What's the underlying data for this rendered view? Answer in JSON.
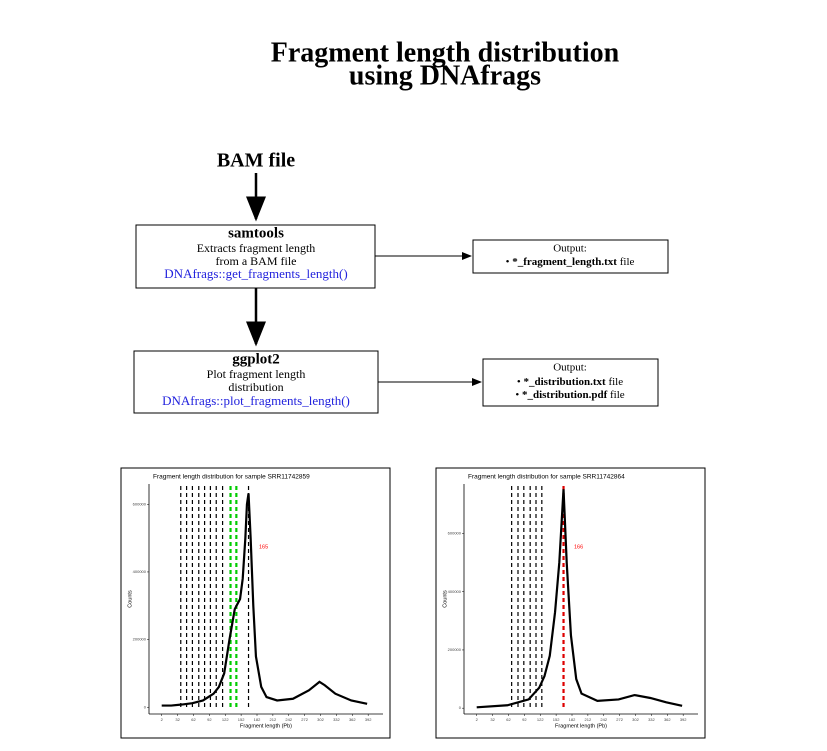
{
  "title": [
    "Fragment length distribution",
    "using DNAfrags"
  ],
  "input": "BAM file",
  "steps": [
    {
      "tool": "samtools",
      "lines": [
        "Extracts fragment length",
        "from a BAM file"
      ],
      "function": "DNAfrags::get_fragments_length()",
      "output": {
        "heading": "Output:",
        "files": [
          {
            "name": "*_fragment_length.txt",
            "suffix": "file"
          }
        ]
      }
    },
    {
      "tool": "ggplot2",
      "lines": [
        "Plot fragment length",
        "distribution"
      ],
      "function": "DNAfrags::plot_fragments_length()",
      "output": {
        "heading": "Output:",
        "files": [
          {
            "name": "*_distribution.txt",
            "suffix": "file"
          },
          {
            "name": "*_distribution.pdf",
            "suffix": "file"
          }
        ]
      }
    }
  ],
  "chart_data": [
    {
      "type": "line",
      "title": "Fragment length distribution for sample SRR11742859",
      "xlabel": "Fragment length (Pb)",
      "ylabel": "Counts",
      "x": [
        2,
        20,
        40,
        60,
        80,
        100,
        110,
        120,
        130,
        140,
        150,
        155,
        160,
        163,
        166,
        170,
        175,
        180,
        190,
        200,
        220,
        250,
        280,
        300,
        310,
        330,
        360,
        390
      ],
      "values": [
        5000,
        5000,
        8000,
        12000,
        20000,
        40000,
        60000,
        100000,
        200000,
        290000,
        320000,
        380000,
        500000,
        600000,
        632000,
        500000,
        300000,
        150000,
        60000,
        30000,
        20000,
        25000,
        50000,
        75000,
        65000,
        40000,
        20000,
        10000
      ],
      "color": "#000000",
      "vlines": [
        {
          "x": 38,
          "color": "#000000"
        },
        {
          "x": 49,
          "color": "#000000"
        },
        {
          "x": 60,
          "color": "#000000"
        },
        {
          "x": 72,
          "color": "#000000"
        },
        {
          "x": 83,
          "color": "#000000"
        },
        {
          "x": 94,
          "color": "#000000"
        },
        {
          "x": 105,
          "color": "#000000"
        },
        {
          "x": 117,
          "color": "#000000"
        },
        {
          "x": 132,
          "color": "#00cc00"
        },
        {
          "x": 143,
          "color": "#00cc00"
        },
        {
          "x": 166,
          "color": "#000000"
        }
      ],
      "annotation": "165",
      "annotation_color": "#ff0000",
      "xlim": [
        -22,
        420
      ],
      "ylim": [
        -20000,
        660000
      ],
      "xticks": [
        2,
        32,
        62,
        92,
        122,
        152,
        182,
        212,
        242,
        272,
        302,
        332,
        362,
        392
      ],
      "yticks": [
        0,
        200000,
        400000,
        600000
      ]
    },
    {
      "type": "line",
      "title": "Fragment length distribution for sample SRR11742864",
      "xlabel": "Fragment length (Pb)",
      "ylabel": "Counts",
      "x": [
        2,
        60,
        100,
        120,
        130,
        140,
        150,
        158,
        166,
        172,
        180,
        190,
        200,
        230,
        270,
        300,
        330,
        360,
        390
      ],
      "values": [
        3000,
        10000,
        30000,
        70000,
        110000,
        180000,
        330000,
        500000,
        752000,
        500000,
        250000,
        100000,
        50000,
        25000,
        30000,
        45000,
        35000,
        20000,
        8000
      ],
      "color": "#000000",
      "vlines": [
        {
          "x": 68,
          "color": "#000000"
        },
        {
          "x": 80,
          "color": "#000000"
        },
        {
          "x": 91,
          "color": "#000000"
        },
        {
          "x": 103,
          "color": "#000000"
        },
        {
          "x": 114,
          "color": "#000000"
        },
        {
          "x": 125,
          "color": "#000000"
        },
        {
          "x": 166,
          "color": "#dd0000"
        }
      ],
      "annotation": "166",
      "annotation_color": "#ff0000",
      "xlim": [
        -22,
        420
      ],
      "ylim": [
        -20000,
        770000
      ],
      "xticks": [
        2,
        32,
        62,
        92,
        122,
        152,
        182,
        212,
        242,
        272,
        302,
        332,
        362,
        392
      ],
      "yticks": [
        0,
        200000,
        400000,
        600000
      ]
    }
  ]
}
